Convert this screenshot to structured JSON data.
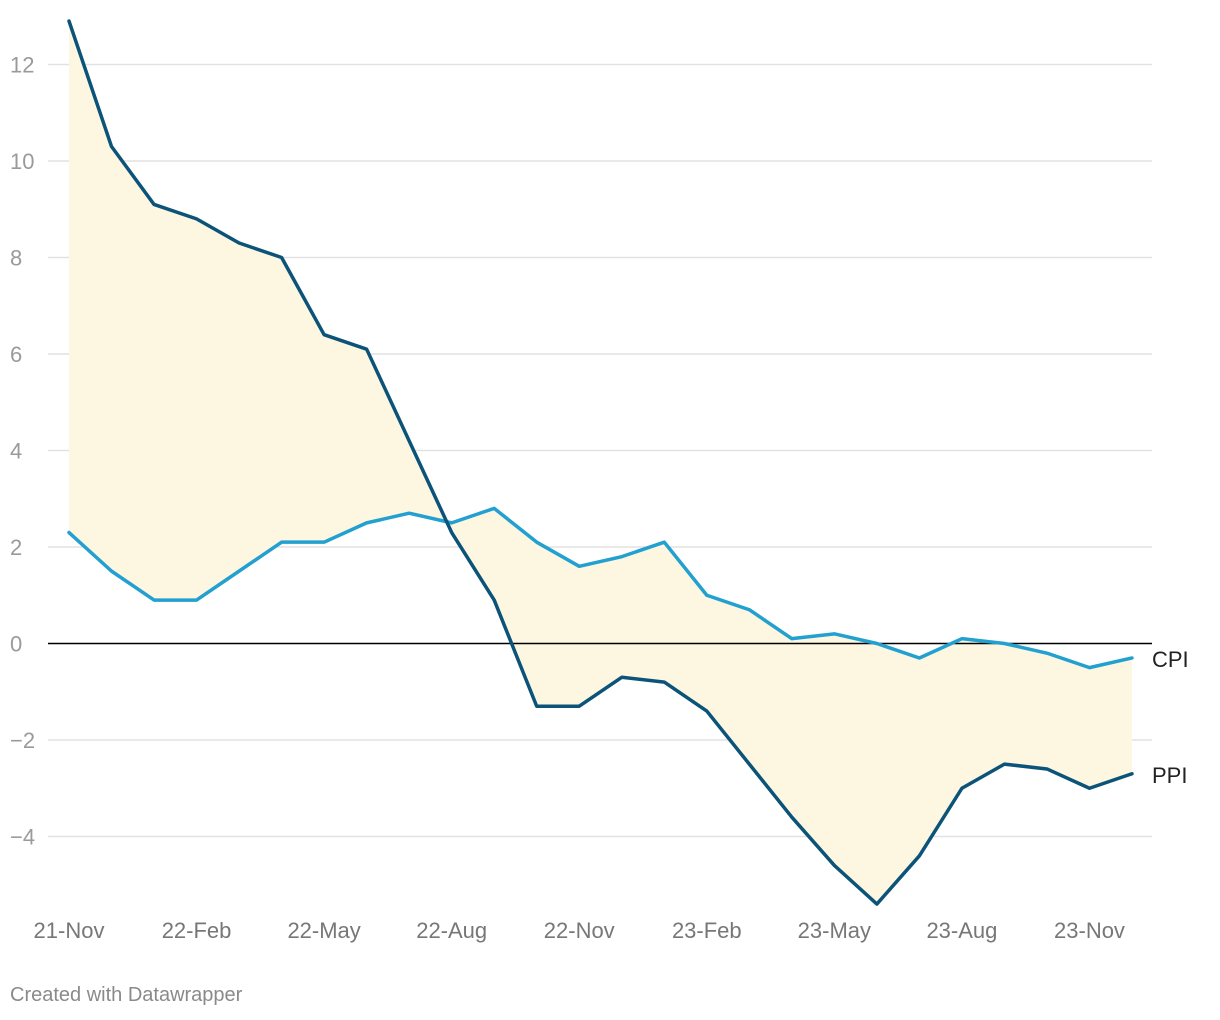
{
  "chart_data": {
    "type": "line",
    "x": [
      "21-Nov",
      "21-Dec",
      "22-Jan",
      "22-Feb",
      "22-Mar",
      "22-Apr",
      "22-May",
      "22-Jun",
      "22-Jul",
      "22-Aug",
      "22-Sep",
      "22-Oct",
      "22-Nov",
      "22-Dec",
      "23-Jan",
      "23-Feb",
      "23-Mar",
      "23-Apr",
      "23-May",
      "23-Jun",
      "23-Jul",
      "23-Aug",
      "23-Sep",
      "23-Oct",
      "23-Nov",
      "23-Dec"
    ],
    "x_ticks": [
      "21-Nov",
      "22-Feb",
      "22-May",
      "22-Aug",
      "22-Nov",
      "23-Feb",
      "23-May",
      "23-Aug",
      "23-Nov"
    ],
    "y_ticks": [
      "12",
      "10",
      "8",
      "6",
      "4",
      "2",
      "0",
      "−2",
      "−4"
    ],
    "ylim": [
      -5.6,
      13.2
    ],
    "grid": true,
    "area_between_series": true,
    "series": [
      {
        "name": "CPI",
        "color": "#22a0d0",
        "values": [
          2.3,
          1.5,
          0.9,
          0.9,
          1.5,
          2.1,
          2.1,
          2.5,
          2.7,
          2.5,
          2.8,
          2.1,
          1.6,
          1.8,
          2.1,
          1.0,
          0.7,
          0.1,
          0.2,
          0.0,
          -0.3,
          0.1,
          0.0,
          -0.2,
          -0.5,
          -0.3
        ]
      },
      {
        "name": "PPI",
        "color": "#0b5378",
        "values": [
          12.9,
          10.3,
          9.1,
          8.8,
          8.3,
          8.0,
          6.4,
          6.1,
          4.2,
          2.3,
          0.9,
          -1.3,
          -1.3,
          -0.7,
          -0.8,
          -1.4,
          -2.5,
          -3.6,
          -4.6,
          -5.4,
          -4.4,
          -3.0,
          -2.5,
          -2.6,
          -3.0,
          -2.7
        ]
      }
    ],
    "fill_color": "#fdf6e1",
    "zero_line_color": "#000000",
    "grid_color": "#e2e2e2"
  },
  "credit": "Created with Datawrapper"
}
